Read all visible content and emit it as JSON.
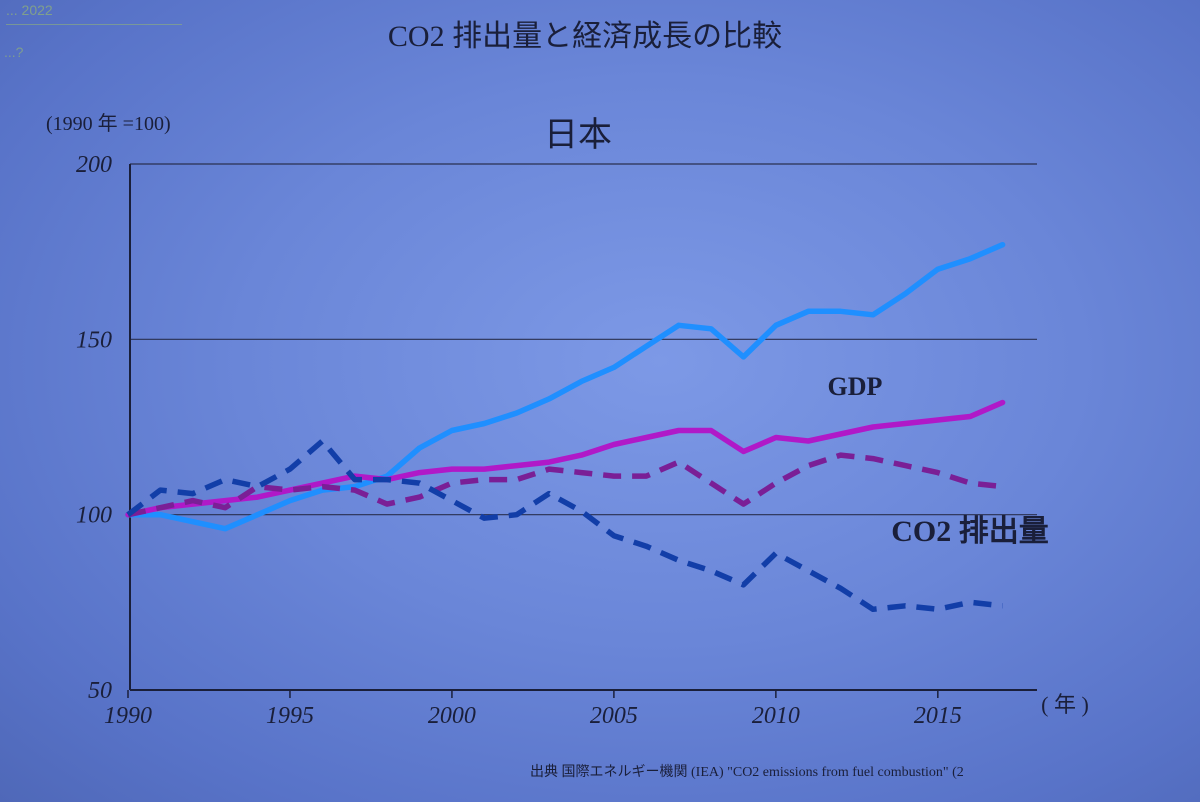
{
  "corner": {
    "line1": "... 2022",
    "line2": "...?"
  },
  "chart_data": {
    "type": "line",
    "title": "CO2 排出量と経済成長の比較",
    "subtitle": "日本",
    "ylabel": "(1990 年 =100)",
    "xlabel": "( 年 )",
    "ylim": [
      50,
      200
    ],
    "xlim": [
      1990,
      2018
    ],
    "yticks": [
      "200",
      "150",
      "100",
      "50"
    ],
    "xticks": [
      "1990",
      "1995",
      "2000",
      "2005",
      "2010",
      "2015"
    ],
    "grid": true,
    "source": "出典 国際エネルギー機関 (IEA) \"CO2 emissions from fuel combustion\" (2",
    "labels": {
      "gdp": "GDP",
      "co2": "CO2 排出量"
    },
    "series": [
      {
        "color": "#1f8fff",
        "dashed": false,
        "x": [
          1990,
          1991,
          1992,
          1993,
          1994,
          1995,
          1996,
          1997,
          1998,
          1999,
          2000,
          2001,
          2002,
          2003,
          2004,
          2005,
          2006,
          2007,
          2008,
          2009,
          2010,
          2011,
          2012,
          2013,
          2014,
          2015,
          2016,
          2017
        ],
        "values": [
          100,
          100,
          98,
          96,
          100,
          104,
          107,
          108,
          111,
          119,
          124,
          126,
          129,
          133,
          138,
          142,
          148,
          154,
          153,
          145,
          154,
          158,
          158,
          157,
          163,
          170,
          173,
          177
        ]
      },
      {
        "name": "GDP",
        "color": "#b019c8",
        "dashed": false,
        "x": [
          1990,
          1991,
          1992,
          1993,
          1994,
          1995,
          1996,
          1997,
          1998,
          1999,
          2000,
          2001,
          2002,
          2003,
          2004,
          2005,
          2006,
          2007,
          2008,
          2009,
          2010,
          2011,
          2012,
          2013,
          2014,
          2015,
          2016,
          2017
        ],
        "values": [
          100,
          102,
          103,
          104,
          105,
          107,
          109,
          111,
          110,
          112,
          113,
          113,
          114,
          115,
          117,
          120,
          122,
          124,
          124,
          118,
          122,
          121,
          123,
          125,
          126,
          127,
          128,
          132
        ]
      },
      {
        "color": "#7a1f96",
        "dashed": true,
        "x": [
          1990,
          1991,
          1992,
          1993,
          1994,
          1995,
          1996,
          1997,
          1998,
          1999,
          2000,
          2001,
          2002,
          2003,
          2004,
          2005,
          2006,
          2007,
          2008,
          2009,
          2010,
          2011,
          2012,
          2013,
          2014,
          2015,
          2016,
          2017
        ],
        "values": [
          100,
          102,
          104,
          102,
          108,
          107,
          108,
          107,
          103,
          105,
          109,
          110,
          110,
          113,
          112,
          111,
          111,
          115,
          109,
          103,
          109,
          114,
          117,
          116,
          114,
          112,
          109,
          108
        ]
      },
      {
        "name": "CO2 排出量",
        "color": "#123ea8",
        "dashed": true,
        "x": [
          1990,
          1991,
          1992,
          1993,
          1994,
          1995,
          1996,
          1997,
          1998,
          1999,
          2000,
          2001,
          2002,
          2003,
          2004,
          2005,
          2006,
          2007,
          2008,
          2009,
          2010,
          2011,
          2012,
          2013,
          2014,
          2015,
          2016,
          2017
        ],
        "values": [
          100,
          107,
          106,
          110,
          108,
          113,
          121,
          110,
          110,
          109,
          104,
          99,
          100,
          106,
          101,
          94,
          91,
          87,
          84,
          80,
          89,
          84,
          79,
          73,
          74,
          73,
          75,
          74
        ]
      }
    ]
  }
}
